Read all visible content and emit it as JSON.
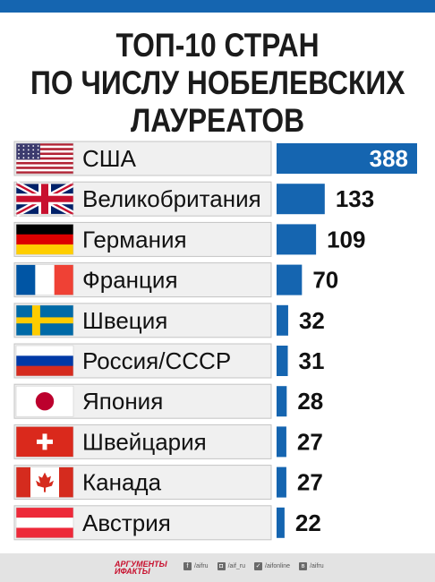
{
  "title_lines": [
    "ТОП-10 СТРАН",
    "ПО ЧИСЛУ НОБЕЛЕВСКИХ",
    "ЛАУРЕАТОВ"
  ],
  "colors": {
    "accent": "#1565b0",
    "row_bg": "#f0f0f0",
    "text": "#111111"
  },
  "chart_data": {
    "type": "bar",
    "orientation": "horizontal",
    "categories": [
      "США",
      "Великобритания",
      "Германия",
      "Франция",
      "Швеция",
      "Россия/СССР",
      "Япония",
      "Швейцария",
      "Канада",
      "Австрия"
    ],
    "values": [
      388,
      133,
      109,
      70,
      32,
      31,
      28,
      27,
      27,
      22
    ],
    "flags": [
      "us-flag-icon",
      "uk-flag-icon",
      "germany-flag-icon",
      "france-flag-icon",
      "sweden-flag-icon",
      "russia-flag-icon",
      "japan-flag-icon",
      "switzerland-flag-icon",
      "canada-flag-icon",
      "austria-flag-icon"
    ],
    "xlim": [
      0,
      388
    ],
    "grid": false,
    "legend": "none"
  },
  "footer": {
    "brand_line1": "АРГУМЕНТЫ",
    "brand_line2": "ИФАКТЫ",
    "socials": [
      {
        "icon": "facebook-icon",
        "glyph": "f",
        "label": "/aifru"
      },
      {
        "icon": "instagram-icon",
        "glyph": "◘",
        "label": "/aif_ru"
      },
      {
        "icon": "twitter-icon",
        "glyph": "✓",
        "label": "/aifonline"
      },
      {
        "icon": "vk-icon",
        "glyph": "в",
        "label": "/aifru"
      }
    ]
  }
}
